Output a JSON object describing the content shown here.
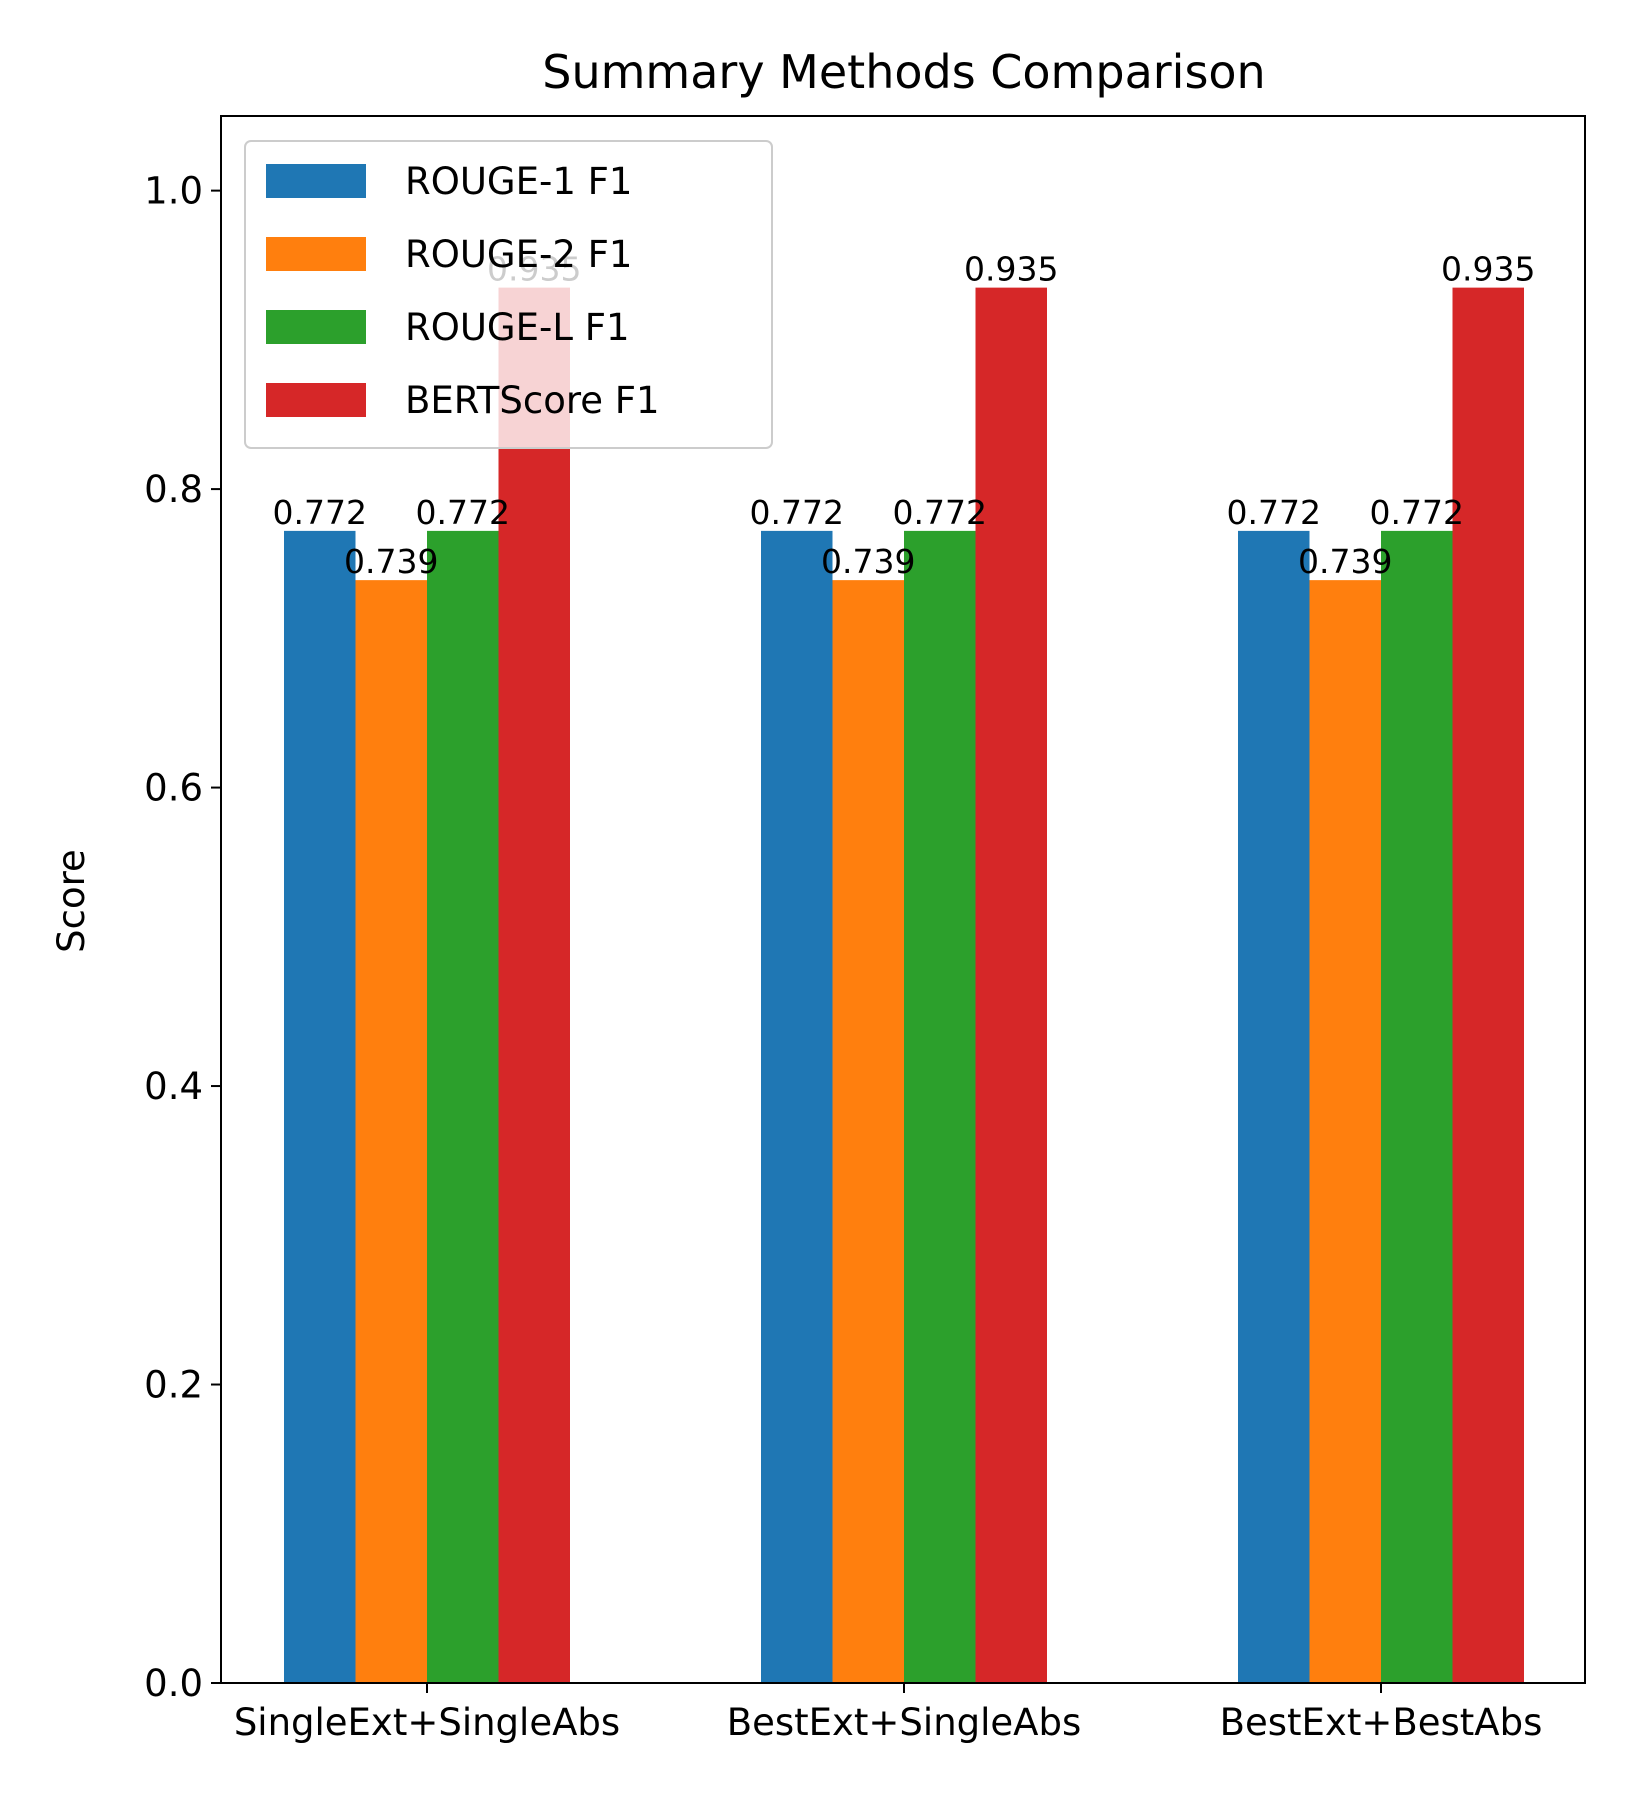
{
  "chart_data": {
    "type": "bar",
    "title": "Summary Methods Comparison",
    "xlabel": "",
    "ylabel": "Score",
    "ylim": [
      0,
      1.05
    ],
    "yticks": [
      0.0,
      0.2,
      0.4,
      0.6,
      0.8,
      1.0
    ],
    "ytick_labels": [
      "0.0",
      "0.2",
      "0.4",
      "0.6",
      "0.8",
      "1.0"
    ],
    "categories": [
      "SingleExt+SingleAbs",
      "BestExt+SingleAbs",
      "BestExt+BestAbs"
    ],
    "series": [
      {
        "name": "ROUGE-1 F1",
        "color": "#1f77b4",
        "values": [
          0.772,
          0.772,
          0.772
        ]
      },
      {
        "name": "ROUGE-2 F1",
        "color": "#ff7f0e",
        "values": [
          0.739,
          0.739,
          0.739
        ]
      },
      {
        "name": "ROUGE-L F1",
        "color": "#2ca02c",
        "values": [
          0.772,
          0.772,
          0.772
        ]
      },
      {
        "name": "BERTScore F1",
        "color": "#d62728",
        "values": [
          0.935,
          0.935,
          0.935
        ]
      }
    ],
    "legend_position": "upper-left",
    "grid": false
  }
}
